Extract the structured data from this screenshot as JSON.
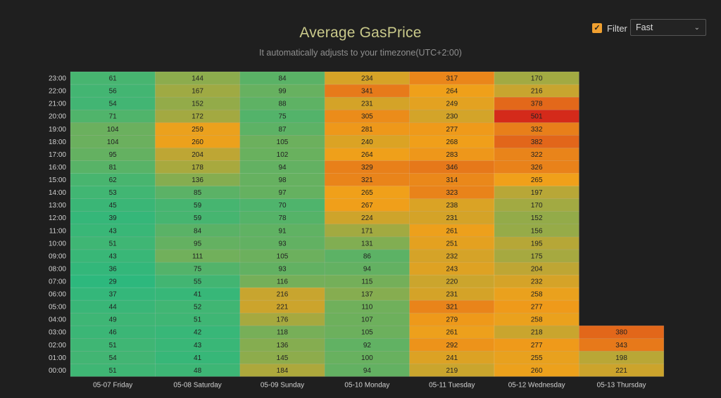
{
  "header": {
    "title": "Average GasPrice",
    "subtitle": "It automatically adjusts to your timezone(UTC+2:00)"
  },
  "filter": {
    "checkbox_checked": true,
    "label": "Filter",
    "select_value": "Fast"
  },
  "chart_data": {
    "type": "heatmap",
    "title": "Average GasPrice",
    "subtitle": "It automatically adjusts to your timezone(UTC+2:00)",
    "x_categories": [
      "05-07 Friday",
      "05-08 Saturday",
      "05-09 Sunday",
      "05-10 Monday",
      "05-11 Tuesday",
      "05-12 Wednesday",
      "05-13 Thursday"
    ],
    "y_categories": [
      "00:00",
      "01:00",
      "02:00",
      "03:00",
      "04:00",
      "05:00",
      "06:00",
      "07:00",
      "08:00",
      "09:00",
      "10:00",
      "11:00",
      "12:00",
      "13:00",
      "14:00",
      "15:00",
      "16:00",
      "17:00",
      "18:00",
      "19:00",
      "20:00",
      "21:00",
      "22:00",
      "23:00"
    ],
    "values": [
      [
        51,
        54,
        51,
        46,
        49,
        44,
        37,
        29,
        36,
        43,
        51,
        43,
        39,
        45,
        53,
        62,
        81,
        95,
        104,
        104,
        71,
        54,
        56,
        61
      ],
      [
        48,
        41,
        43,
        42,
        51,
        52,
        41,
        55,
        75,
        111,
        95,
        84,
        59,
        59,
        85,
        136,
        178,
        204,
        260,
        259,
        172,
        152,
        167,
        144
      ],
      [
        184,
        145,
        136,
        118,
        176,
        221,
        216,
        116,
        93,
        105,
        93,
        91,
        78,
        70,
        97,
        98,
        94,
        102,
        105,
        87,
        75,
        88,
        99,
        84
      ],
      [
        94,
        100,
        92,
        105,
        107,
        110,
        137,
        115,
        94,
        86,
        131,
        171,
        224,
        267,
        265,
        321,
        329,
        264,
        240,
        281,
        305,
        231,
        341,
        234
      ],
      [
        219,
        241,
        292,
        261,
        279,
        321,
        231,
        220,
        243,
        232,
        251,
        261,
        231,
        238,
        323,
        314,
        346,
        283,
        268,
        277,
        230,
        249,
        264,
        317
      ],
      [
        260,
        255,
        277,
        218,
        258,
        277,
        258,
        232,
        204,
        175,
        195,
        156,
        152,
        170,
        197,
        265,
        326,
        322,
        382,
        332,
        501,
        378,
        216,
        170
      ],
      [
        221,
        198,
        343,
        380
      ]
    ],
    "color_scale": [
      "#2db87d",
      "#f0a01a",
      "#d42a1a"
    ],
    "value_range": [
      29,
      501
    ],
    "grid": false,
    "legend": "none"
  }
}
